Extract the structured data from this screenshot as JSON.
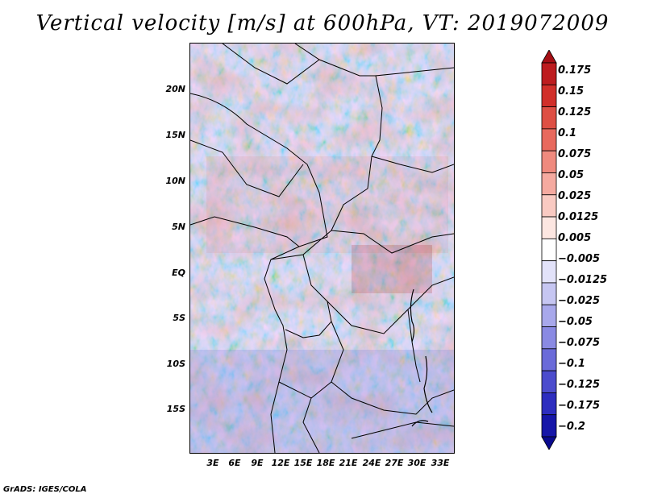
{
  "title": "Vertical velocity [m/s] at 600hPa, VT: 2019072009",
  "credit": "GrADS: IGES/COLA",
  "map": {
    "lat_labels": [
      "20N",
      "15N",
      "10N",
      "5N",
      "EQ",
      "5S",
      "10S",
      "15S"
    ],
    "lon_labels": [
      "3E",
      "6E",
      "9E",
      "12E",
      "15E",
      "18E",
      "21E",
      "24E",
      "27E",
      "30E",
      "33E"
    ]
  },
  "colorbar": {
    "labels": [
      "0.175",
      "0.15",
      "0.125",
      "0.1",
      "0.075",
      "0.05",
      "0.025",
      "0.0125",
      "0.005",
      "−0.005",
      "−0.0125",
      "−0.025",
      "−0.05",
      "−0.075",
      "−0.1",
      "−0.125",
      "−0.175",
      "−0.2"
    ],
    "colors": [
      "#a50f15",
      "#bd1c1f",
      "#d12f2a",
      "#de4f44",
      "#e8695d",
      "#ef8a7e",
      "#f5aaa0",
      "#f9cac2",
      "#fce6e1",
      "#ffffff",
      "#e2e2f9",
      "#c6c6f2",
      "#a8a8eb",
      "#8a8ae3",
      "#6b6bd9",
      "#4c4ccd",
      "#2d2dbf",
      "#1616a8",
      "#0a0a8f"
    ]
  }
}
